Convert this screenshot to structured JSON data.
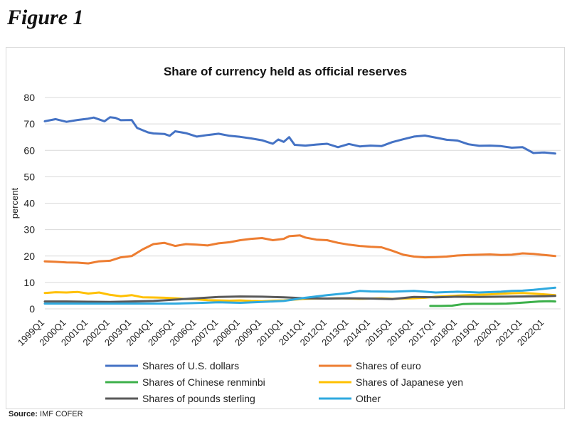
{
  "figure_label": "Figure 1",
  "source": {
    "label": "Source:",
    "text": "IMF COFER"
  },
  "chart_data": {
    "type": "line",
    "title": "Share of currency held as official reserves",
    "xlabel": "",
    "ylabel": "percent",
    "ylim": [
      0,
      80
    ],
    "yticks": [
      0,
      10,
      20,
      30,
      40,
      50,
      60,
      70,
      80
    ],
    "grid": "horizontal",
    "legend_position": "bottom",
    "x_tick_labels": [
      "1999Q1",
      "2000Q1",
      "2001Q1",
      "2002Q1",
      "2003Q1",
      "2004Q1",
      "2005Q1",
      "2006Q1",
      "2007Q1",
      "2008Q1",
      "2009Q1",
      "2010Q1",
      "2011Q1",
      "2012Q1",
      "2013Q1",
      "2014Q1",
      "2015Q1",
      "2016Q1",
      "2017Q1",
      "2018Q1",
      "2019Q1",
      "2020Q1",
      "2021Q1",
      "2022Q1"
    ],
    "x_range": [
      "1999Q1",
      "2022Q1"
    ],
    "series": [
      {
        "name": "Shares of U.S. dollars",
        "color": "#4472C4",
        "points": [
          [
            "1999Q1",
            71
          ],
          [
            "1999Q3",
            71.8
          ],
          [
            "2000Q1",
            70.8
          ],
          [
            "2000Q3",
            71.5
          ],
          [
            "2001Q1",
            72
          ],
          [
            "2001Q2",
            72.4
          ],
          [
            "2001Q4",
            71
          ],
          [
            "2002Q1",
            72.5
          ],
          [
            "2002Q2",
            72.3
          ],
          [
            "2002Q3",
            71.4
          ],
          [
            "2003Q1",
            71.5
          ],
          [
            "2003Q2",
            68.5
          ],
          [
            "2003Q4",
            66.8
          ],
          [
            "2004Q1",
            66.4
          ],
          [
            "2004Q3",
            66.2
          ],
          [
            "2004Q4",
            65.5
          ],
          [
            "2005Q1",
            67.2
          ],
          [
            "2005Q3",
            66.5
          ],
          [
            "2006Q1",
            65.2
          ],
          [
            "2006Q3",
            65.8
          ],
          [
            "2007Q1",
            66.3
          ],
          [
            "2007Q3",
            65.5
          ],
          [
            "2008Q1",
            65.1
          ],
          [
            "2008Q3",
            64.5
          ],
          [
            "2009Q1",
            63.8
          ],
          [
            "2009Q3",
            62.5
          ],
          [
            "2009Q4",
            64.1
          ],
          [
            "2010Q1",
            63.2
          ],
          [
            "2010Q2",
            65
          ],
          [
            "2010Q3",
            62.1
          ],
          [
            "2011Q1",
            61.8
          ],
          [
            "2011Q3",
            62.2
          ],
          [
            "2012Q1",
            62.5
          ],
          [
            "2012Q3",
            61.2
          ],
          [
            "2013Q1",
            62.4
          ],
          [
            "2013Q3",
            61.5
          ],
          [
            "2014Q1",
            61.8
          ],
          [
            "2014Q3",
            61.6
          ],
          [
            "2015Q1",
            63.1
          ],
          [
            "2015Q3",
            64.2
          ],
          [
            "2016Q1",
            65.2
          ],
          [
            "2016Q3",
            65.6
          ],
          [
            "2017Q1",
            64.8
          ],
          [
            "2017Q3",
            64
          ],
          [
            "2018Q1",
            63.7
          ],
          [
            "2018Q3",
            62.3
          ],
          [
            "2019Q1",
            61.7
          ],
          [
            "2019Q3",
            61.8
          ],
          [
            "2020Q1",
            61.6
          ],
          [
            "2020Q3",
            61
          ],
          [
            "2021Q1",
            61.2
          ],
          [
            "2021Q3",
            59
          ],
          [
            "2022Q1",
            59.2
          ],
          [
            "2022Q3",
            58.8
          ]
        ]
      },
      {
        "name": "Shares of euro",
        "color": "#ED7D31",
        "points": [
          [
            "1999Q1",
            18
          ],
          [
            "1999Q3",
            17.8
          ],
          [
            "2000Q1",
            17.6
          ],
          [
            "2000Q3",
            17.5
          ],
          [
            "2001Q1",
            17.2
          ],
          [
            "2001Q3",
            18
          ],
          [
            "2002Q1",
            18.2
          ],
          [
            "2002Q3",
            19.5
          ],
          [
            "2003Q1",
            20
          ],
          [
            "2003Q3",
            22.5
          ],
          [
            "2004Q1",
            24.5
          ],
          [
            "2004Q3",
            25
          ],
          [
            "2005Q1",
            23.8
          ],
          [
            "2005Q3",
            24.5
          ],
          [
            "2006Q1",
            24.3
          ],
          [
            "2006Q3",
            24
          ],
          [
            "2007Q1",
            24.8
          ],
          [
            "2007Q3",
            25.2
          ],
          [
            "2008Q1",
            26
          ],
          [
            "2008Q3",
            26.5
          ],
          [
            "2009Q1",
            26.8
          ],
          [
            "2009Q3",
            26
          ],
          [
            "2010Q1",
            26.5
          ],
          [
            "2010Q2",
            27.5
          ],
          [
            "2010Q4",
            27.8
          ],
          [
            "2011Q1",
            27
          ],
          [
            "2011Q3",
            26.2
          ],
          [
            "2012Q1",
            26
          ],
          [
            "2012Q3",
            25
          ],
          [
            "2013Q1",
            24.3
          ],
          [
            "2013Q3",
            23.8
          ],
          [
            "2014Q1",
            23.5
          ],
          [
            "2014Q3",
            23.3
          ],
          [
            "2015Q1",
            22
          ],
          [
            "2015Q3",
            20.5
          ],
          [
            "2016Q1",
            19.8
          ],
          [
            "2016Q3",
            19.5
          ],
          [
            "2017Q1",
            19.6
          ],
          [
            "2017Q3",
            19.8
          ],
          [
            "2018Q1",
            20.2
          ],
          [
            "2018Q3",
            20.4
          ],
          [
            "2019Q1",
            20.5
          ],
          [
            "2019Q3",
            20.6
          ],
          [
            "2020Q1",
            20.4
          ],
          [
            "2020Q3",
            20.5
          ],
          [
            "2021Q1",
            21
          ],
          [
            "2021Q3",
            20.8
          ],
          [
            "2022Q1",
            20.4
          ],
          [
            "2022Q3",
            20
          ]
        ]
      },
      {
        "name": "Shares of Chinese renminbi",
        "color": "#3CB04A",
        "points": [
          [
            "2016Q4",
            1.1
          ],
          [
            "2017Q2",
            1.1
          ],
          [
            "2017Q4",
            1.2
          ],
          [
            "2018Q2",
            1.8
          ],
          [
            "2018Q4",
            1.9
          ],
          [
            "2019Q2",
            1.9
          ],
          [
            "2019Q4",
            1.9
          ],
          [
            "2020Q2",
            2.0
          ],
          [
            "2020Q4",
            2.2
          ],
          [
            "2021Q2",
            2.5
          ],
          [
            "2021Q4",
            2.8
          ],
          [
            "2022Q2",
            2.9
          ],
          [
            "2022Q3",
            2.8
          ]
        ]
      },
      {
        "name": "Shares of Japanese yen",
        "color": "#FFC000",
        "points": [
          [
            "1999Q1",
            6
          ],
          [
            "1999Q3",
            6.3
          ],
          [
            "2000Q1",
            6.2
          ],
          [
            "2000Q3",
            6.4
          ],
          [
            "2001Q1",
            5.8
          ],
          [
            "2001Q3",
            6.2
          ],
          [
            "2002Q1",
            5.3
          ],
          [
            "2002Q3",
            4.8
          ],
          [
            "2003Q1",
            5.2
          ],
          [
            "2003Q3",
            4.4
          ],
          [
            "2004Q1",
            4.3
          ],
          [
            "2004Q3",
            4.2
          ],
          [
            "2005Q1",
            4
          ],
          [
            "2005Q3",
            3.7
          ],
          [
            "2006Q1",
            3.6
          ],
          [
            "2006Q3",
            3.3
          ],
          [
            "2007Q1",
            3.2
          ],
          [
            "2007Q3",
            3.1
          ],
          [
            "2008Q1",
            3.2
          ],
          [
            "2008Q3",
            3
          ],
          [
            "2009Q1",
            2.9
          ],
          [
            "2009Q3",
            3.1
          ],
          [
            "2010Q1",
            3.2
          ],
          [
            "2010Q3",
            3.5
          ],
          [
            "2011Q1",
            3.8
          ],
          [
            "2011Q3",
            3.9
          ],
          [
            "2012Q1",
            3.9
          ],
          [
            "2012Q3",
            4
          ],
          [
            "2013Q1",
            3.9
          ],
          [
            "2013Q3",
            3.8
          ],
          [
            "2014Q1",
            3.9
          ],
          [
            "2014Q3",
            4
          ],
          [
            "2015Q1",
            3.8
          ],
          [
            "2015Q3",
            3.9
          ],
          [
            "2016Q1",
            4
          ],
          [
            "2016Q3",
            4.2
          ],
          [
            "2017Q1",
            4.6
          ],
          [
            "2017Q3",
            4.8
          ],
          [
            "2018Q1",
            5
          ],
          [
            "2018Q3",
            5.2
          ],
          [
            "2019Q1",
            5.3
          ],
          [
            "2019Q3",
            5.5
          ],
          [
            "2020Q1",
            5.7
          ],
          [
            "2020Q3",
            5.9
          ],
          [
            "2021Q1",
            6
          ],
          [
            "2021Q3",
            5.8
          ],
          [
            "2022Q1",
            5.5
          ],
          [
            "2022Q3",
            5.2
          ]
        ]
      },
      {
        "name": "Shares of pounds sterling",
        "color": "#595959",
        "points": [
          [
            "1999Q1",
            2.8
          ],
          [
            "2000Q1",
            2.8
          ],
          [
            "2001Q1",
            2.7
          ],
          [
            "2002Q1",
            2.6
          ],
          [
            "2003Q1",
            2.8
          ],
          [
            "2004Q1",
            3
          ],
          [
            "2005Q1",
            3.5
          ],
          [
            "2006Q1",
            4
          ],
          [
            "2007Q1",
            4.5
          ],
          [
            "2008Q1",
            4.7
          ],
          [
            "2009Q1",
            4.6
          ],
          [
            "2010Q1",
            4.4
          ],
          [
            "2011Q1",
            4
          ],
          [
            "2012Q1",
            3.9
          ],
          [
            "2013Q1",
            4
          ],
          [
            "2014Q1",
            3.9
          ],
          [
            "2015Q1",
            3.7
          ],
          [
            "2016Q1",
            4.5
          ],
          [
            "2017Q1",
            4.4
          ],
          [
            "2018Q1",
            4.6
          ],
          [
            "2019Q1",
            4.5
          ],
          [
            "2020Q1",
            4.6
          ],
          [
            "2021Q1",
            4.7
          ],
          [
            "2022Q1",
            4.8
          ],
          [
            "2022Q3",
            4.9
          ]
        ]
      },
      {
        "name": "Other",
        "color": "#2FA9DF",
        "points": [
          [
            "1999Q1",
            2
          ],
          [
            "2000Q1",
            2
          ],
          [
            "2001Q1",
            2
          ],
          [
            "2002Q1",
            2
          ],
          [
            "2003Q1",
            2
          ],
          [
            "2004Q1",
            2
          ],
          [
            "2005Q1",
            2
          ],
          [
            "2006Q1",
            2.2
          ],
          [
            "2007Q1",
            2.5
          ],
          [
            "2008Q1",
            2.3
          ],
          [
            "2009Q1",
            2.6
          ],
          [
            "2010Q1",
            3
          ],
          [
            "2011Q1",
            4.2
          ],
          [
            "2012Q1",
            5.2
          ],
          [
            "2013Q1",
            6
          ],
          [
            "2013Q3",
            6.8
          ],
          [
            "2014Q1",
            6.6
          ],
          [
            "2015Q1",
            6.5
          ],
          [
            "2016Q1",
            6.8
          ],
          [
            "2017Q1",
            6.2
          ],
          [
            "2018Q1",
            6.5
          ],
          [
            "2019Q1",
            6.2
          ],
          [
            "2020Q1",
            6.5
          ],
          [
            "2020Q3",
            6.8
          ],
          [
            "2021Q1",
            6.9
          ],
          [
            "2021Q3",
            7.2
          ],
          [
            "2022Q1",
            7.6
          ],
          [
            "2022Q3",
            8
          ]
        ]
      }
    ]
  }
}
